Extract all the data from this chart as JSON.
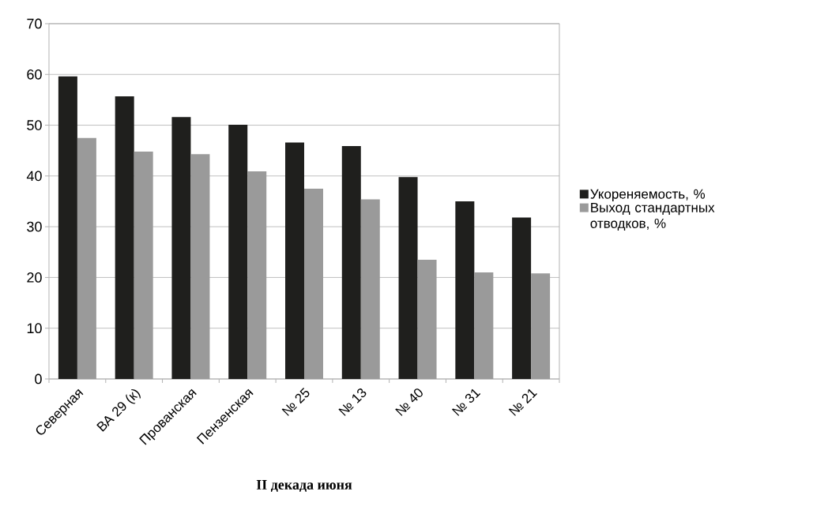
{
  "chart_data": {
    "type": "bar",
    "title": "II декада июня",
    "categories": [
      "Северная",
      "ВА 29 (к)",
      "Прованская",
      "Пензенская",
      "№ 25",
      "№ 13",
      "№ 40",
      "№ 31",
      "№ 21"
    ],
    "series": [
      {
        "name": "Укореняемость, %",
        "color": "#1f1f1d",
        "values": [
          59.6,
          55.7,
          51.6,
          50.1,
          46.6,
          45.9,
          39.8,
          35.0,
          31.8
        ]
      },
      {
        "name": "Выход стандартных отводков, %",
        "color": "#9a9a9a",
        "values": [
          47.5,
          44.8,
          44.3,
          40.9,
          37.5,
          35.4,
          23.5,
          21.0,
          20.8
        ]
      }
    ],
    "ylim": [
      0,
      70
    ],
    "yticks": [
      0,
      10,
      20,
      30,
      40,
      50,
      60,
      70
    ],
    "grid": "y",
    "legend": "right"
  }
}
